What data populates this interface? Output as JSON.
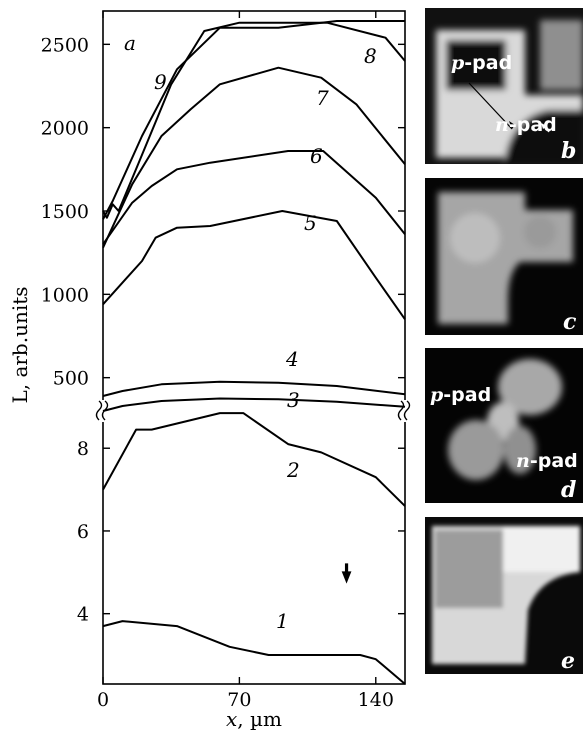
{
  "chart_data": {
    "type": "line",
    "panel_label": "a",
    "xlabel_var": "x",
    "xlabel_unit": ", µm",
    "ylabel": "L, arb.units",
    "xlim": [
      0,
      155
    ],
    "x_ticks": [
      "0",
      "70",
      "140"
    ],
    "x_tick_values": [
      0,
      70,
      140
    ],
    "upper_axis": {
      "ylim": [
        300,
        2700
      ],
      "ticks": [
        "500",
        "1000",
        "1500",
        "2000",
        "2500"
      ],
      "tick_values": [
        500,
        1000,
        1500,
        2000,
        2500
      ]
    },
    "lower_axis": {
      "ylim": [
        2.3,
        8.9
      ],
      "ticks": [
        "4",
        "6",
        "8"
      ],
      "tick_values": [
        4,
        6,
        8
      ]
    },
    "axis_break": true,
    "marker_arrow_x": 125,
    "series": [
      {
        "name": "1",
        "axis": "lower",
        "x": [
          0,
          10,
          38,
          65,
          85,
          112,
          132,
          140,
          155
        ],
        "y": [
          3.7,
          3.82,
          3.7,
          3.2,
          3.0,
          3.0,
          3.0,
          2.9,
          2.3
        ]
      },
      {
        "name": "2",
        "axis": "lower",
        "x": [
          0,
          17,
          25,
          60,
          72,
          95,
          112,
          140,
          155
        ],
        "y": [
          7.0,
          8.45,
          8.45,
          8.85,
          8.85,
          8.1,
          7.9,
          7.3,
          6.6
        ]
      },
      {
        "name": "3",
        "axis": "upper",
        "x": [
          0,
          10,
          30,
          60,
          90,
          120,
          155
        ],
        "y": [
          300,
          330,
          360,
          375,
          370,
          355,
          325
        ]
      },
      {
        "name": "4",
        "axis": "upper",
        "x": [
          0,
          10,
          30,
          60,
          90,
          120,
          155
        ],
        "y": [
          390,
          420,
          460,
          475,
          470,
          450,
          400
        ]
      },
      {
        "name": "5",
        "axis": "upper",
        "x": [
          0,
          20,
          27,
          38,
          55,
          92,
          120,
          140,
          155
        ],
        "y": [
          940,
          1200,
          1340,
          1400,
          1410,
          1500,
          1440,
          1100,
          850
        ]
      },
      {
        "name": "6",
        "axis": "upper",
        "x": [
          0,
          15,
          25,
          38,
          55,
          95,
          113,
          140,
          155
        ],
        "y": [
          1300,
          1550,
          1650,
          1750,
          1790,
          1860,
          1860,
          1580,
          1360
        ]
      },
      {
        "name": "7",
        "axis": "upper",
        "x": [
          0,
          15,
          30,
          45,
          60,
          90,
          112,
          130,
          155
        ],
        "y": [
          1280,
          1660,
          1950,
          2110,
          2260,
          2360,
          2300,
          2140,
          1780
        ]
      },
      {
        "name": "8",
        "axis": "upper",
        "x": [
          0,
          5,
          20,
          38,
          60,
          90,
          120,
          145,
          155
        ],
        "y": [
          1450,
          1560,
          1950,
          2350,
          2600,
          2600,
          2640,
          2640,
          2640
        ]
      },
      {
        "name": "9",
        "axis": "upper",
        "x": [
          0,
          2,
          5,
          8,
          18,
          35,
          52,
          70,
          95,
          115,
          145,
          155
        ],
        "y": [
          1500,
          1460,
          1540,
          1500,
          1780,
          2260,
          2580,
          2630,
          2630,
          2630,
          2540,
          2400
        ]
      }
    ]
  },
  "images": {
    "b": {
      "letter": "b",
      "p_pad_prefix": "p",
      "p_pad_suffix": "-pad",
      "n_pad_prefix": "n",
      "n_pad_suffix": "-pad"
    },
    "c": {
      "letter": "c"
    },
    "d": {
      "letter": "d",
      "p_pad_prefix": "p",
      "p_pad_suffix": "-pad",
      "n_pad_prefix": "n",
      "n_pad_suffix": "-pad"
    },
    "e": {
      "letter": "e"
    }
  }
}
